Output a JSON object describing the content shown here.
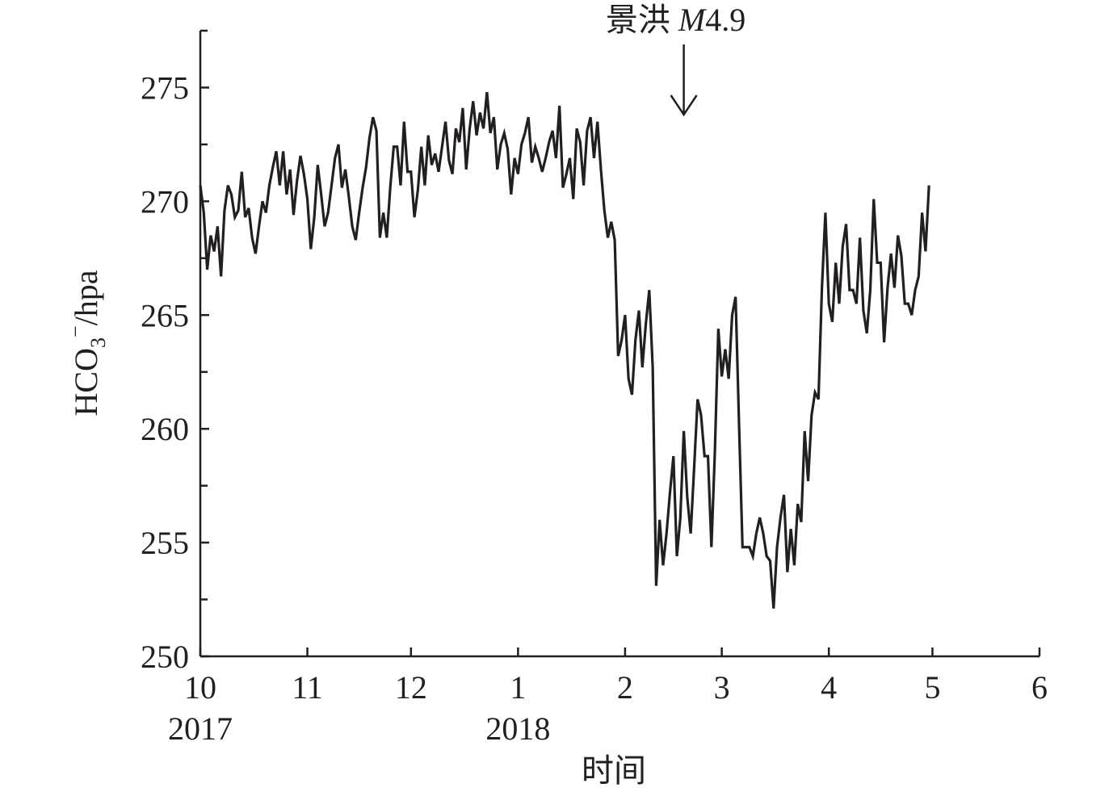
{
  "chart_data": {
    "type": "line",
    "xlabel": "时间",
    "ylabel": {
      "base": "HCO",
      "sub": "3",
      "sup": "−",
      "rest": "/hpa"
    },
    "annotation": {
      "place": "景洪",
      "symbol": "M",
      "magnitude": "4.9",
      "x": 140
    },
    "x": [
      0,
      1,
      2,
      3,
      4,
      5,
      6,
      7,
      8,
      9,
      10,
      11,
      12,
      13,
      14,
      15,
      16,
      17,
      18,
      19,
      20,
      21,
      22,
      23,
      24,
      25,
      26,
      27,
      28,
      29,
      30,
      31,
      32,
      33,
      34,
      35,
      36,
      37,
      38,
      39,
      40,
      41,
      42,
      43,
      44,
      45,
      46,
      47,
      48,
      49,
      50,
      51,
      52,
      53,
      54,
      55,
      56,
      57,
      58,
      59,
      60,
      61,
      62,
      63,
      64,
      65,
      66,
      67,
      68,
      69,
      70,
      71,
      72,
      73,
      74,
      75,
      76,
      77,
      78,
      79,
      80,
      81,
      82,
      83,
      84,
      85,
      86,
      87,
      88,
      89,
      90,
      91,
      92,
      93,
      94,
      95,
      96,
      97,
      98,
      99,
      100,
      101,
      102,
      103,
      104,
      105,
      106,
      107,
      108,
      109,
      110,
      111,
      112,
      113,
      114,
      115,
      116,
      117,
      118,
      119,
      120,
      121,
      122,
      123,
      124,
      125,
      126,
      127,
      128,
      129,
      130,
      131,
      132,
      133,
      134,
      135,
      136,
      137,
      138,
      139,
      140,
      141,
      142,
      143,
      144,
      145,
      146,
      147,
      148,
      149,
      150,
      151,
      152,
      153,
      154,
      155,
      156,
      157,
      158,
      159,
      160,
      161,
      162,
      163,
      164,
      165,
      166,
      167,
      168,
      169,
      170,
      171,
      172,
      173,
      174,
      175,
      176,
      177,
      178,
      179,
      180,
      181,
      182,
      183,
      184,
      185,
      186,
      187,
      188,
      189,
      190,
      191,
      192,
      193,
      194,
      195,
      196,
      197,
      198,
      199,
      200,
      201,
      202,
      203,
      204,
      205,
      206,
      207,
      208,
      209,
      210,
      211
    ],
    "series": [
      {
        "color": "#231f20",
        "values": [
          270.7,
          269.5,
          267.0,
          268.5,
          267.8,
          268.9,
          266.7,
          269.6,
          270.7,
          270.3,
          269.3,
          269.6,
          271.3,
          269.3,
          269.7,
          268.4,
          267.7,
          268.9,
          270.0,
          269.5,
          270.7,
          271.5,
          272.2,
          270.7,
          272.2,
          270.3,
          271.4,
          269.4,
          270.9,
          272.0,
          271.2,
          270.1,
          267.9,
          269.3,
          271.6,
          270.3,
          268.9,
          269.5,
          270.7,
          271.9,
          272.5,
          270.6,
          271.4,
          270.2,
          268.9,
          268.3,
          269.5,
          270.6,
          271.5,
          272.8,
          273.7,
          273.1,
          268.4,
          269.5,
          268.4,
          270.6,
          272.4,
          272.4,
          270.7,
          273.5,
          271.3,
          271.3,
          269.3,
          270.5,
          272.4,
          270.7,
          272.9,
          271.6,
          272.1,
          271.3,
          272.4,
          273.5,
          271.8,
          271.2,
          273.2,
          272.6,
          274.1,
          271.4,
          273.2,
          274.4,
          272.9,
          273.9,
          273.2,
          274.8,
          273.0,
          273.7,
          271.4,
          272.5,
          273.0,
          272.3,
          270.3,
          271.9,
          271.2,
          272.5,
          273.0,
          273.7,
          271.7,
          272.4,
          271.9,
          271.3,
          271.9,
          272.6,
          273.1,
          271.9,
          274.2,
          270.6,
          271.2,
          271.9,
          270.1,
          273.2,
          272.6,
          270.7,
          273.1,
          273.7,
          271.9,
          273.5,
          271.4,
          269.6,
          268.4,
          269.1,
          268.3,
          263.2,
          263.9,
          265.0,
          262.2,
          261.5,
          263.9,
          265.2,
          262.7,
          264.6,
          266.1,
          262.7,
          253.1,
          256.0,
          254.0,
          255.4,
          257.2,
          258.8,
          254.4,
          256.1,
          259.9,
          257.0,
          255.4,
          258.3,
          261.3,
          260.6,
          258.8,
          258.8,
          254.8,
          259.0,
          264.4,
          262.3,
          263.5,
          262.2,
          265.0,
          265.8,
          260.2,
          254.8,
          254.8,
          254.8,
          254.4,
          255.4,
          256.1,
          255.4,
          254.4,
          254.2,
          252.1,
          254.8,
          256.1,
          257.1,
          253.7,
          255.6,
          254.0,
          256.7,
          255.9,
          259.9,
          257.7,
          260.6,
          261.6,
          261.3,
          266.2,
          269.5,
          265.5,
          264.7,
          267.3,
          265.5,
          268.0,
          269.0,
          266.1,
          266.1,
          265.5,
          268.4,
          265.2,
          264.2,
          266.1,
          270.1,
          267.3,
          267.3,
          263.8,
          266.2,
          267.7,
          266.2,
          268.5,
          267.6,
          265.5,
          265.5,
          265.0,
          266.1,
          266.7,
          269.5,
          267.8,
          270.7
        ]
      }
    ],
    "xlim": [
      0,
      243
    ],
    "xticks": [
      {
        "value": 0,
        "label": "10"
      },
      {
        "value": 31,
        "label": "11"
      },
      {
        "value": 61,
        "label": "12"
      },
      {
        "value": 92,
        "label": "1"
      },
      {
        "value": 123,
        "label": "2"
      },
      {
        "value": 151,
        "label": "3"
      },
      {
        "value": 182,
        "label": "4"
      },
      {
        "value": 212,
        "label": "5"
      },
      {
        "value": 243,
        "label": "6"
      }
    ],
    "xsublabels": [
      {
        "value": 0,
        "label": "2017"
      },
      {
        "value": 92,
        "label": "2018"
      }
    ],
    "ylim": [
      250,
      277.5
    ],
    "yticks": [
      250,
      255,
      260,
      265,
      270,
      275
    ],
    "yminorticks": [
      252.5,
      257.5,
      262.5,
      267.5,
      272.5,
      277.5
    ],
    "grid": false
  }
}
